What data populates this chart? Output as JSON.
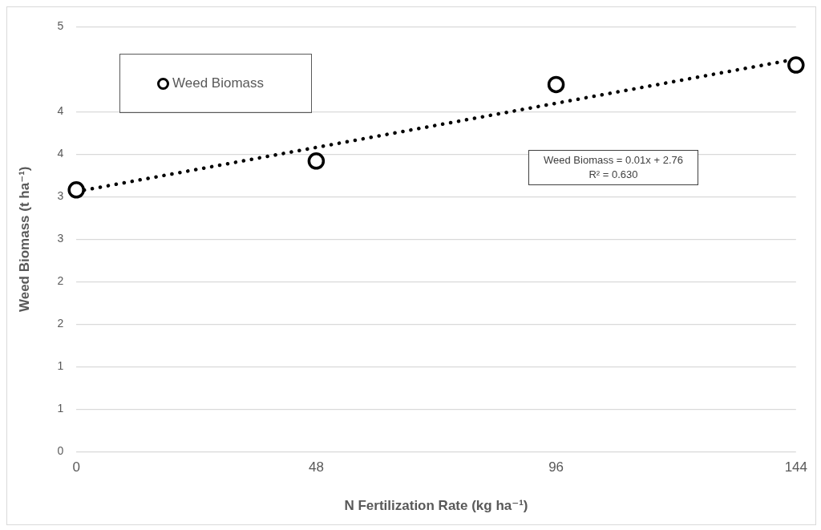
{
  "chart_data": {
    "type": "scatter",
    "xlabel": "N Fertilization Rate (kg ha⁻¹)",
    "ylabel": "Weed Biomass (t ha⁻¹)",
    "xlim": [
      0,
      144
    ],
    "xticks": [
      0,
      48,
      96,
      144
    ],
    "ylim": [
      0,
      5
    ],
    "yticks": [
      0,
      {
        "value": 0.5,
        "label": "1"
      },
      1,
      {
        "value": 1.5,
        "label": "2"
      },
      2,
      {
        "value": 2.5,
        "label": "3"
      },
      3,
      {
        "value": 3.5,
        "label": "4"
      },
      4,
      5
    ],
    "grid": "y",
    "legend": "top left",
    "series": [
      {
        "name": "Weed Biomass",
        "type": "scatter",
        "marker": "circle",
        "color": "#000000",
        "x": [
          0,
          48,
          96,
          144
        ],
        "values": [
          3.08,
          3.42,
          4.32,
          4.55
        ]
      },
      {
        "type": "line",
        "line_style": "dotted",
        "marker": "none",
        "color": "#000000",
        "x": [
          0,
          144
        ],
        "values": [
          3.06,
          4.62
        ]
      }
    ],
    "annotations": [
      "Weed Biomass = 0.01x + 2.76",
      "R² = 0.630"
    ]
  }
}
